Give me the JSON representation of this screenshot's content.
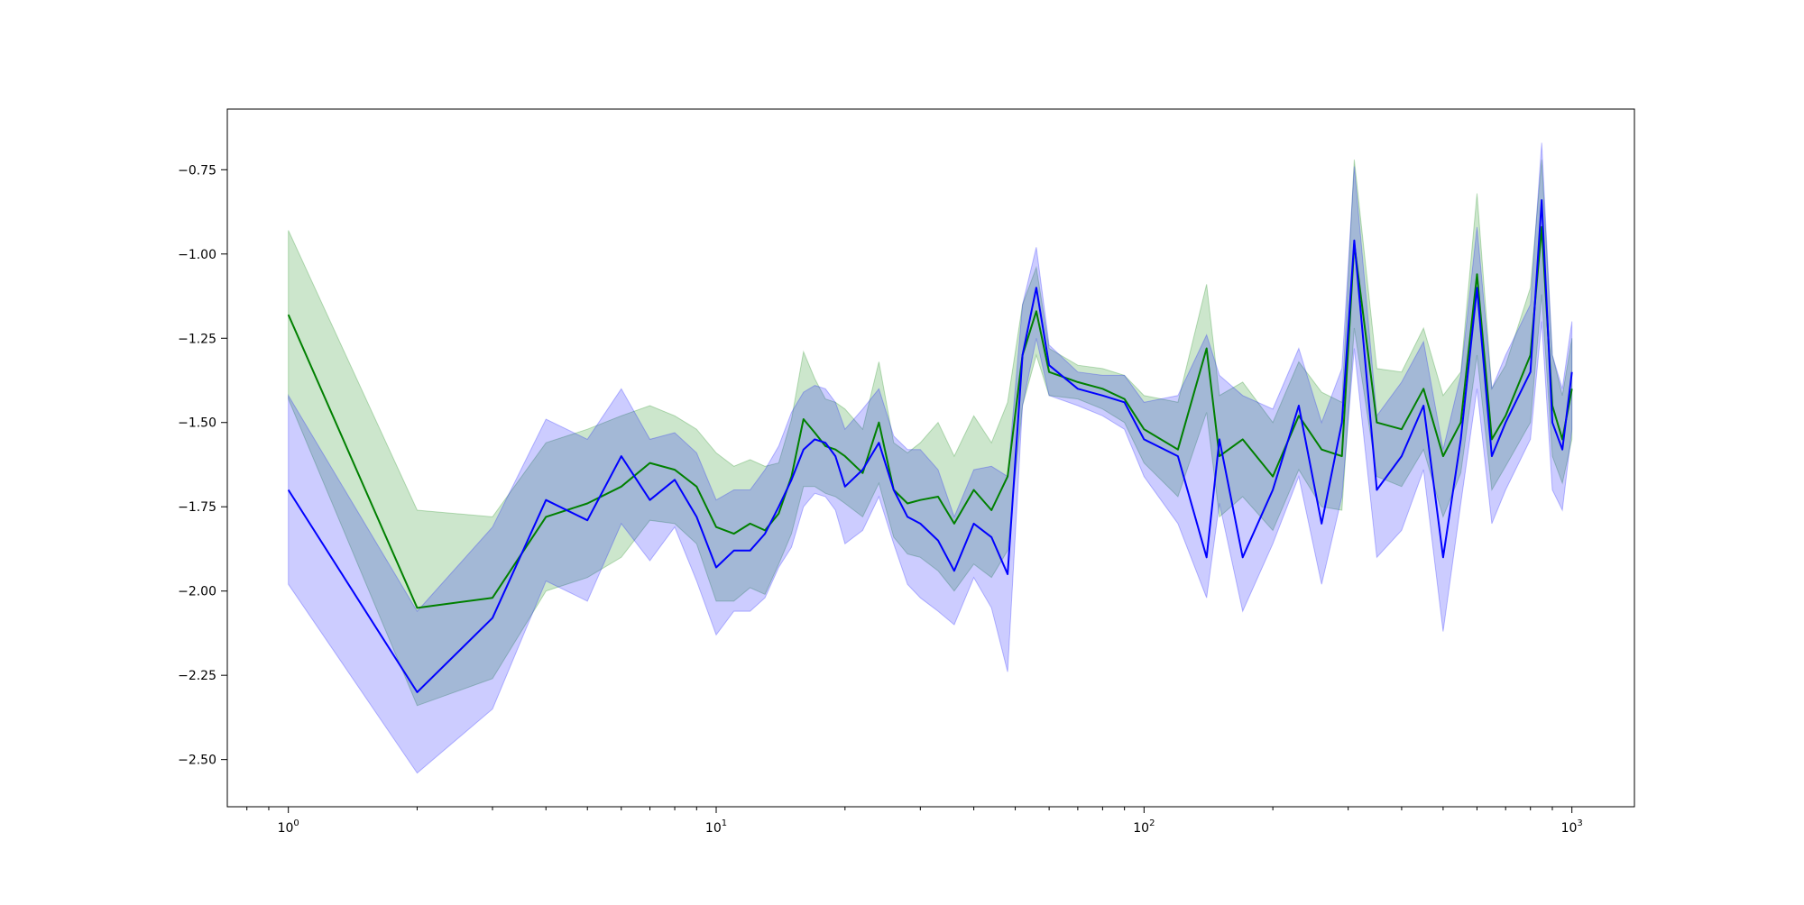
{
  "chart_data": {
    "type": "line",
    "title": "",
    "xlabel": "",
    "ylabel": "",
    "xscale": "log",
    "xlim": [
      0.72,
      1400
    ],
    "ylim": [
      -2.64,
      -0.57
    ],
    "x_ticks": [
      {
        "value": 1,
        "base": "10",
        "exp": "0"
      },
      {
        "value": 10,
        "base": "10",
        "exp": "1"
      },
      {
        "value": 100,
        "base": "10",
        "exp": "2"
      },
      {
        "value": 1000,
        "base": "10",
        "exp": "3"
      }
    ],
    "y_ticks": [
      {
        "value": -0.75,
        "label": "−0.75"
      },
      {
        "value": -1.0,
        "label": "−1.00"
      },
      {
        "value": -1.25,
        "label": "−1.25"
      },
      {
        "value": -1.5,
        "label": "−1.50"
      },
      {
        "value": -1.75,
        "label": "−1.75"
      },
      {
        "value": -2.0,
        "label": "−2.00"
      },
      {
        "value": -2.25,
        "label": "−2.25"
      },
      {
        "value": -2.5,
        "label": "−2.50"
      }
    ],
    "grid": false,
    "legend": false,
    "series": [
      {
        "color": "#008000",
        "band_color": "#008000",
        "band_alpha": 0.2,
        "x": [
          1,
          2,
          3,
          4,
          5,
          6,
          7,
          8,
          9,
          10,
          11,
          12,
          13,
          14,
          15,
          16,
          17,
          18,
          19,
          20,
          22,
          24,
          26,
          28,
          30,
          33,
          36,
          40,
          44,
          48,
          52,
          56,
          60,
          70,
          80,
          90,
          100,
          120,
          140,
          150,
          170,
          200,
          230,
          260,
          290,
          310,
          350,
          400,
          450,
          500,
          550,
          600,
          650,
          700,
          800,
          850,
          900,
          950,
          1000
        ],
        "y": [
          -1.18,
          -2.05,
          -2.02,
          -1.78,
          -1.74,
          -1.69,
          -1.62,
          -1.64,
          -1.69,
          -1.81,
          -1.83,
          -1.8,
          -1.82,
          -1.77,
          -1.66,
          -1.49,
          -1.53,
          -1.57,
          -1.58,
          -1.6,
          -1.65,
          -1.5,
          -1.7,
          -1.74,
          -1.73,
          -1.72,
          -1.8,
          -1.7,
          -1.76,
          -1.66,
          -1.3,
          -1.17,
          -1.35,
          -1.38,
          -1.4,
          -1.43,
          -1.52,
          -1.58,
          -1.28,
          -1.6,
          -1.55,
          -1.66,
          -1.48,
          -1.58,
          -1.6,
          -0.97,
          -1.5,
          -1.52,
          -1.4,
          -1.6,
          -1.5,
          -1.06,
          -1.55,
          -1.48,
          -1.3,
          -0.92,
          -1.45,
          -1.55,
          -1.4
        ],
        "lower": [
          -1.43,
          -2.34,
          -2.26,
          -2.0,
          -1.96,
          -1.9,
          -1.79,
          -1.8,
          -1.86,
          -2.03,
          -2.03,
          -1.99,
          -2.01,
          -1.92,
          -1.83,
          -1.69,
          -1.69,
          -1.71,
          -1.72,
          -1.74,
          -1.78,
          -1.68,
          -1.84,
          -1.89,
          -1.9,
          -1.94,
          -2.0,
          -1.92,
          -1.96,
          -1.88,
          -1.45,
          -1.3,
          -1.42,
          -1.43,
          -1.46,
          -1.5,
          -1.62,
          -1.72,
          -1.47,
          -1.78,
          -1.72,
          -1.82,
          -1.64,
          -1.75,
          -1.76,
          -1.22,
          -1.66,
          -1.69,
          -1.58,
          -1.78,
          -1.65,
          -1.3,
          -1.7,
          -1.63,
          -1.5,
          -1.12,
          -1.6,
          -1.68,
          -1.55
        ],
        "upper": [
          -0.93,
          -1.76,
          -1.78,
          -1.56,
          -1.52,
          -1.48,
          -1.45,
          -1.48,
          -1.52,
          -1.59,
          -1.63,
          -1.61,
          -1.63,
          -1.62,
          -1.49,
          -1.29,
          -1.37,
          -1.43,
          -1.44,
          -1.46,
          -1.52,
          -1.32,
          -1.56,
          -1.59,
          -1.56,
          -1.5,
          -1.6,
          -1.48,
          -1.56,
          -1.44,
          -1.15,
          -1.04,
          -1.28,
          -1.33,
          -1.34,
          -1.36,
          -1.42,
          -1.44,
          -1.09,
          -1.42,
          -1.38,
          -1.5,
          -1.32,
          -1.41,
          -1.44,
          -0.72,
          -1.34,
          -1.35,
          -1.22,
          -1.42,
          -1.35,
          -0.82,
          -1.4,
          -1.33,
          -1.1,
          -0.72,
          -1.3,
          -1.42,
          -1.25
        ]
      },
      {
        "color": "#0000ff",
        "band_color": "#0000ff",
        "band_alpha": 0.2,
        "x": [
          1,
          2,
          3,
          4,
          5,
          6,
          7,
          8,
          9,
          10,
          11,
          12,
          13,
          14,
          15,
          16,
          17,
          18,
          19,
          20,
          22,
          24,
          26,
          28,
          30,
          33,
          36,
          40,
          44,
          48,
          52,
          56,
          60,
          70,
          80,
          90,
          100,
          120,
          140,
          150,
          170,
          200,
          230,
          260,
          290,
          310,
          350,
          400,
          450,
          500,
          550,
          600,
          650,
          700,
          800,
          850,
          900,
          950,
          1000
        ],
        "y": [
          -1.7,
          -2.3,
          -2.08,
          -1.73,
          -1.79,
          -1.6,
          -1.73,
          -1.67,
          -1.78,
          -1.93,
          -1.88,
          -1.88,
          -1.83,
          -1.75,
          -1.67,
          -1.58,
          -1.55,
          -1.56,
          -1.6,
          -1.69,
          -1.64,
          -1.56,
          -1.7,
          -1.78,
          -1.8,
          -1.85,
          -1.94,
          -1.8,
          -1.84,
          -1.95,
          -1.3,
          -1.1,
          -1.33,
          -1.4,
          -1.42,
          -1.44,
          -1.55,
          -1.6,
          -1.9,
          -1.55,
          -1.9,
          -1.7,
          -1.45,
          -1.8,
          -1.5,
          -0.96,
          -1.7,
          -1.6,
          -1.45,
          -1.9,
          -1.55,
          -1.1,
          -1.6,
          -1.5,
          -1.35,
          -0.84,
          -1.5,
          -1.58,
          -1.35
        ],
        "lower": [
          -1.98,
          -2.54,
          -2.35,
          -1.97,
          -2.03,
          -1.8,
          -1.91,
          -1.81,
          -1.97,
          -2.13,
          -2.06,
          -2.06,
          -2.02,
          -1.93,
          -1.87,
          -1.75,
          -1.71,
          -1.72,
          -1.76,
          -1.86,
          -1.82,
          -1.72,
          -1.86,
          -1.98,
          -2.02,
          -2.06,
          -2.1,
          -1.96,
          -2.05,
          -2.24,
          -1.45,
          -1.25,
          -1.42,
          -1.45,
          -1.48,
          -1.52,
          -1.66,
          -1.8,
          -2.02,
          -1.74,
          -2.06,
          -1.86,
          -1.66,
          -1.98,
          -1.72,
          -1.28,
          -1.9,
          -1.82,
          -1.64,
          -2.12,
          -1.74,
          -1.4,
          -1.8,
          -1.7,
          -1.55,
          -1.2,
          -1.7,
          -1.76,
          -1.52
        ],
        "upper": [
          -1.42,
          -2.06,
          -1.81,
          -1.49,
          -1.55,
          -1.4,
          -1.55,
          -1.53,
          -1.59,
          -1.73,
          -1.7,
          -1.7,
          -1.64,
          -1.57,
          -1.47,
          -1.41,
          -1.39,
          -1.4,
          -1.44,
          -1.52,
          -1.46,
          -1.4,
          -1.54,
          -1.58,
          -1.58,
          -1.64,
          -1.78,
          -1.64,
          -1.63,
          -1.66,
          -1.15,
          -0.98,
          -1.27,
          -1.35,
          -1.36,
          -1.36,
          -1.44,
          -1.42,
          -1.24,
          -1.36,
          -1.42,
          -1.46,
          -1.28,
          -1.5,
          -1.34,
          -0.74,
          -1.48,
          -1.38,
          -1.26,
          -1.58,
          -1.36,
          -0.92,
          -1.4,
          -1.3,
          -1.15,
          -0.67,
          -1.3,
          -1.4,
          -1.2
        ]
      }
    ]
  }
}
